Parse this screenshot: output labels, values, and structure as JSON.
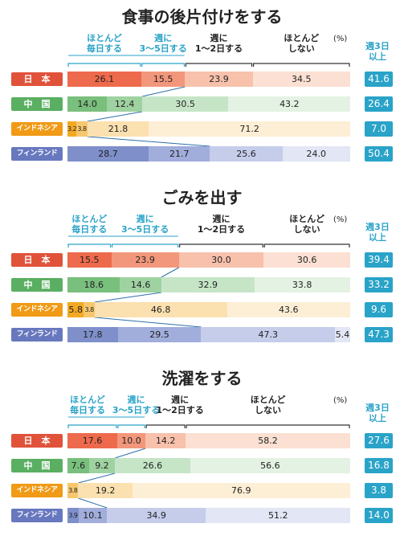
{
  "chart_data": [
    {
      "type": "bar",
      "stacked": true,
      "orientation": "horizontal",
      "title": "食事の後片付けをする",
      "unit": "(%)",
      "series": [
        {
          "name": "ほとんど毎日する"
        },
        {
          "name": "週に3〜5日する"
        },
        {
          "name": "週に1〜2日する"
        },
        {
          "name": "ほとんどしない"
        }
      ],
      "rows": [
        {
          "country": "日　本",
          "values": [
            26.1,
            15.5,
            23.9,
            34.5
          ],
          "weekly3": "41.6"
        },
        {
          "country": "中　国",
          "values": [
            14.0,
            12.4,
            30.5,
            43.2
          ],
          "weekly3": "26.4"
        },
        {
          "country": "インドネシア",
          "values": [
            3.2,
            3.8,
            21.8,
            71.2
          ],
          "weekly3": "7.0"
        },
        {
          "country": "フィンランド",
          "values": [
            28.7,
            21.7,
            25.6,
            24.0
          ],
          "weekly3": "50.4"
        }
      ]
    },
    {
      "type": "bar",
      "stacked": true,
      "orientation": "horizontal",
      "title": "ごみを出す",
      "unit": "(%)",
      "series": [
        {
          "name": "ほとんど毎日する"
        },
        {
          "name": "週に3〜5日する"
        },
        {
          "name": "週に1〜2日する"
        },
        {
          "name": "ほとんどしない"
        }
      ],
      "rows": [
        {
          "country": "日　本",
          "values": [
            15.5,
            23.9,
            30.0,
            30.6
          ],
          "weekly3": "39.4"
        },
        {
          "country": "中　国",
          "values": [
            18.6,
            14.6,
            32.9,
            33.8
          ],
          "weekly3": "33.2"
        },
        {
          "country": "インドネシア",
          "values": [
            5.8,
            3.8,
            46.8,
            43.6
          ],
          "weekly3": "9.6"
        },
        {
          "country": "フィンランド",
          "values": [
            17.8,
            29.5,
            47.3,
            5.4
          ],
          "weekly3": "47.3"
        }
      ]
    },
    {
      "type": "bar",
      "stacked": true,
      "orientation": "horizontal",
      "title": "洗濯をする",
      "unit": "(%)",
      "series": [
        {
          "name": "ほとんど毎日する"
        },
        {
          "name": "週に3〜5日する"
        },
        {
          "name": "週に1〜2日する"
        },
        {
          "name": "ほとんどしない"
        }
      ],
      "rows": [
        {
          "country": "日　本",
          "values": [
            17.6,
            10.0,
            14.2,
            58.2
          ],
          "weekly3": "27.6"
        },
        {
          "country": "中　国",
          "values": [
            7.6,
            9.2,
            26.6,
            56.6
          ],
          "weekly3": "16.8"
        },
        {
          "country": "インドネシア",
          "values": [
            0.0,
            3.8,
            19.2,
            76.9
          ],
          "weekly3": "3.8"
        },
        {
          "country": "フィンランド",
          "values": [
            3.9,
            10.1,
            34.9,
            51.2
          ],
          "weekly3": "14.0"
        }
      ]
    }
  ],
  "headers": {
    "daily": [
      "ほとんど",
      "毎日する"
    ],
    "three_five": [
      "週に",
      "3〜5日する"
    ],
    "one_two": [
      "週に",
      "1〜2日する"
    ],
    "rarely": [
      "ほとんど",
      "しない"
    ],
    "weekly3": [
      "週3日",
      "以上"
    ]
  },
  "colors": {
    "japan": [
      "#ee6a4c",
      "#f2977b",
      "#f7c1ab",
      "#fbe0d3"
    ],
    "china": [
      "#79bf7d",
      "#9fd2a1",
      "#c6e5c7",
      "#e3f2e3"
    ],
    "indonesia": [
      "#f3a923",
      "#f7c76d",
      "#fbe0b0",
      "#fdefd5"
    ],
    "finland": [
      "#7e8fca",
      "#a1addb",
      "#c5cdeb",
      "#e2e6f5"
    ],
    "label_japan": "#e0523a",
    "label_china": "#5aaf62",
    "label_indonesia": "#f09a16",
    "label_finland": "#6878bf",
    "accent": "#2aa3c8"
  }
}
